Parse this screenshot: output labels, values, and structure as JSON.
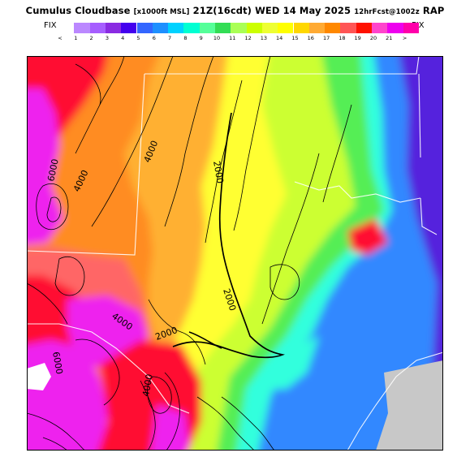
{
  "header": {
    "title_main": "Cumulus Cloudbase",
    "title_units": "[x1000ft MSL]",
    "title_time": "21Z(16cdt) WED 14 May 2025",
    "title_fcst": "12hrFcst@1002z",
    "title_model": "RAP"
  },
  "legend": {
    "fix_left": "FIX",
    "fix_right": "FIX",
    "end_left": "<",
    "end_right": ">",
    "ticks": [
      "1",
      "2",
      "3",
      "4",
      "5",
      "6",
      "7",
      "8",
      "9",
      "10",
      "11",
      "12",
      "13",
      "14",
      "15",
      "16",
      "17",
      "18",
      "19",
      "20",
      "21"
    ],
    "colors": [
      "#ffffff",
      "#bb88ff",
      "#a65eff",
      "#8a2be2",
      "#4400ee",
      "#3366ff",
      "#1e90ff",
      "#00d2ff",
      "#00ffd2",
      "#55ff99",
      "#33dd55",
      "#aaff55",
      "#ccff00",
      "#eeff33",
      "#ffff00",
      "#ffd700",
      "#ffaa33",
      "#ff8800",
      "#ff5555",
      "#ff1100",
      "#ff44cc",
      "#ee00ee",
      "#ff00aa"
    ]
  },
  "contour_labels": [
    "6000",
    "4000",
    "4000",
    "2000",
    "2000",
    "4000",
    "2000",
    "4000",
    "6000"
  ],
  "colors": {
    "magenta": "#ee22ee",
    "red": "#ff1133",
    "salmon": "#ff6666",
    "orange": "#ff8c22",
    "amber": "#ffb033",
    "yellow": "#ffff33",
    "yellow_green": "#ccff33",
    "green": "#55ee55",
    "cyan": "#33ffdd",
    "blue": "#3388ff",
    "indigo": "#6633ee",
    "violet": "#5522dd",
    "gray": "#c8c8c8"
  }
}
